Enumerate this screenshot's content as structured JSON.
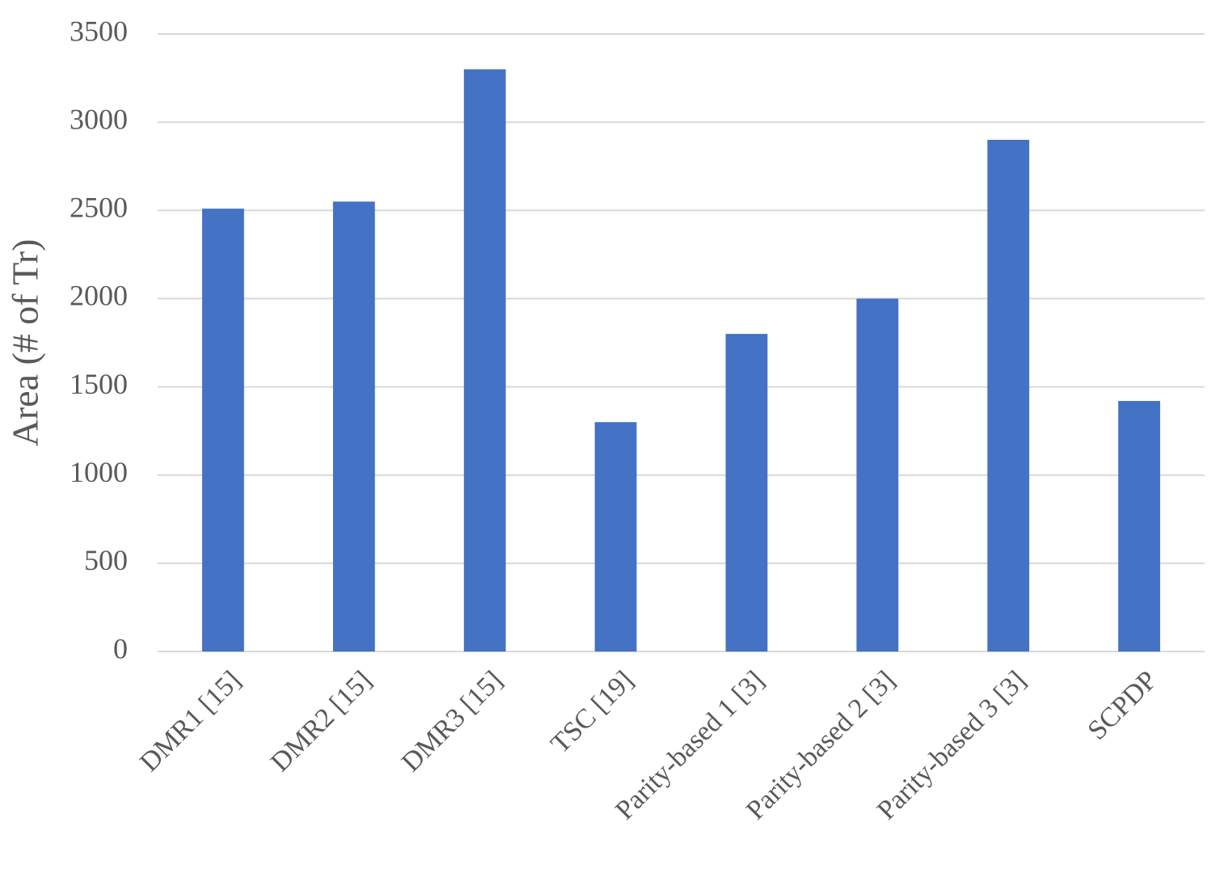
{
  "chart_data": {
    "type": "bar",
    "y_label": "Area (# of Tr)",
    "categories": [
      "DMR1 [15]",
      "DMR2 [15]",
      "DMR3 [15]",
      "TSC [19]",
      "Parity-based 1 [3]",
      "Parity-based 2 [3]",
      "Parity-based 3 [3]",
      "SCPDP"
    ],
    "values": [
      2510,
      2550,
      3300,
      1300,
      1800,
      2000,
      2900,
      1420
    ],
    "color": "#4472c4",
    "ylim": [
      0,
      3500
    ],
    "yticks": [
      0,
      500,
      1000,
      1500,
      2000,
      2500,
      3000,
      3500
    ],
    "grid": true
  }
}
